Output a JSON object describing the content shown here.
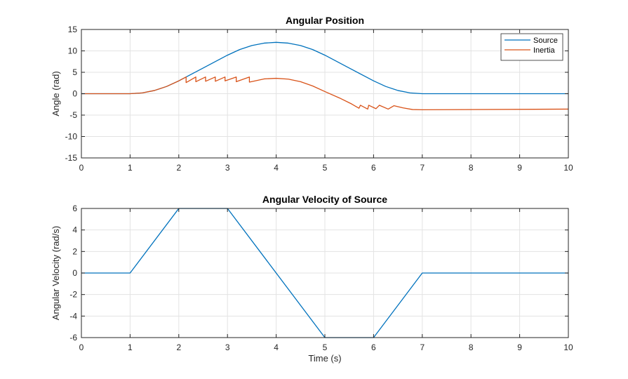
{
  "chart_data": [
    {
      "type": "line",
      "title": "Angular Position",
      "xlabel": "",
      "ylabel": "Angle (rad)",
      "xlim": [
        0,
        10
      ],
      "ylim": [
        -15,
        15
      ],
      "xticks": [
        0,
        1,
        2,
        3,
        4,
        5,
        6,
        7,
        8,
        9,
        10
      ],
      "yticks": [
        -15,
        -10,
        -5,
        0,
        5,
        10,
        15
      ],
      "grid": true,
      "legend": "top-right",
      "series": [
        {
          "name": "Source",
          "color": "#0072BD",
          "points": [
            [
              0,
              0
            ],
            [
              1,
              0
            ],
            [
              1.25,
              0.19
            ],
            [
              1.5,
              0.75
            ],
            [
              1.75,
              1.69
            ],
            [
              2,
              3.0
            ],
            [
              2.5,
              6.0
            ],
            [
              3,
              9.0
            ],
            [
              3.25,
              10.31
            ],
            [
              3.5,
              11.25
            ],
            [
              3.75,
              11.81
            ],
            [
              4,
              12.0
            ],
            [
              4.25,
              11.81
            ],
            [
              4.5,
              11.25
            ],
            [
              4.75,
              10.31
            ],
            [
              5,
              9.0
            ],
            [
              5.5,
              6.0
            ],
            [
              6,
              3.0
            ],
            [
              6.25,
              1.69
            ],
            [
              6.5,
              0.75
            ],
            [
              6.75,
              0.19
            ],
            [
              7,
              0
            ],
            [
              10,
              0
            ]
          ]
        },
        {
          "name": "Inertia",
          "color": "#D95319",
          "points": [
            [
              0,
              0
            ],
            [
              1,
              0
            ],
            [
              1.25,
              0.19
            ],
            [
              1.5,
              0.75
            ],
            [
              1.75,
              1.69
            ],
            [
              2,
              3.0
            ],
            [
              2.15,
              3.9
            ],
            [
              2.15,
              2.6
            ],
            [
              2.35,
              3.9
            ],
            [
              2.35,
              2.8
            ],
            [
              2.55,
              3.9
            ],
            [
              2.55,
              2.9
            ],
            [
              2.75,
              3.9
            ],
            [
              2.75,
              2.9
            ],
            [
              2.95,
              3.9
            ],
            [
              2.95,
              3.0
            ],
            [
              3.18,
              3.9
            ],
            [
              3.18,
              2.8
            ],
            [
              3.45,
              3.9
            ],
            [
              3.45,
              2.7
            ],
            [
              3.75,
              3.45
            ],
            [
              4,
              3.6
            ],
            [
              4.25,
              3.4
            ],
            [
              4.5,
              2.8
            ],
            [
              4.75,
              1.8
            ],
            [
              5,
              0.5
            ],
            [
              5.3,
              -1.0
            ],
            [
              5.55,
              -2.4
            ],
            [
              5.7,
              -3.4
            ],
            [
              5.73,
              -2.7
            ],
            [
              5.88,
              -3.6
            ],
            [
              5.9,
              -2.7
            ],
            [
              6.05,
              -3.5
            ],
            [
              6.12,
              -2.7
            ],
            [
              6.3,
              -3.6
            ],
            [
              6.42,
              -2.8
            ],
            [
              6.6,
              -3.3
            ],
            [
              6.8,
              -3.7
            ],
            [
              7,
              -3.75
            ],
            [
              10,
              -3.6
            ]
          ]
        }
      ]
    },
    {
      "type": "line",
      "title": "Angular Velocity of Source",
      "xlabel": "Time (s)",
      "ylabel": "Angular Velocity (rad/s)",
      "xlim": [
        0,
        10
      ],
      "ylim": [
        -6,
        6
      ],
      "xticks": [
        0,
        1,
        2,
        3,
        4,
        5,
        6,
        7,
        8,
        9,
        10
      ],
      "yticks": [
        -6,
        -4,
        -2,
        0,
        2,
        4,
        6
      ],
      "grid": true,
      "series": [
        {
          "color": "#0072BD",
          "points": [
            [
              0,
              0
            ],
            [
              1,
              0
            ],
            [
              2,
              6
            ],
            [
              3,
              6
            ],
            [
              5,
              -6
            ],
            [
              6,
              -6
            ],
            [
              7,
              0
            ],
            [
              10,
              0
            ]
          ]
        }
      ]
    }
  ]
}
